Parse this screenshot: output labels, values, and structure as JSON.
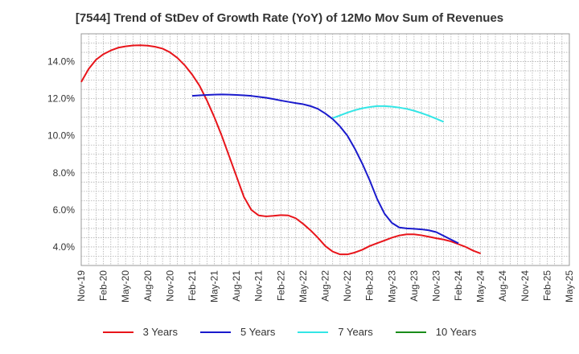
{
  "chart_data": {
    "type": "line",
    "title": "[7544]  Trend of StDev of Growth Rate (YoY) of 12Mo Mov Sum of Revenues",
    "xlabel": "",
    "ylabel": "",
    "y_range": [
      3.0,
      15.5
    ],
    "y_ticks": [
      4.0,
      6.0,
      8.0,
      10.0,
      12.0,
      14.0
    ],
    "y_tick_labels": [
      "4.0%",
      "6.0%",
      "8.0%",
      "10.0%",
      "12.0%",
      "14.0%"
    ],
    "x_tick_labels": [
      "Nov-19",
      "Feb-20",
      "May-20",
      "Aug-20",
      "Nov-20",
      "Feb-21",
      "May-21",
      "Aug-21",
      "Nov-21",
      "Feb-22",
      "May-22",
      "Aug-22",
      "Nov-22",
      "Feb-23",
      "May-23",
      "Aug-23",
      "Nov-23",
      "Feb-24",
      "May-24",
      "Aug-24",
      "Nov-24",
      "Feb-25",
      "May-25"
    ],
    "grid": true,
    "legend_position": "bottom",
    "series": [
      {
        "name": "3 Years",
        "color": "#e8141a",
        "values": [
          12.9,
          13.6,
          14.1,
          14.4,
          14.6,
          14.75,
          14.82,
          14.87,
          14.88,
          14.86,
          14.8,
          14.7,
          14.5,
          14.2,
          13.8,
          13.3,
          12.7,
          11.9,
          11.0,
          10.0,
          8.9,
          7.8,
          6.7,
          6.0,
          5.7,
          5.65,
          5.68,
          5.72,
          5.7,
          5.55,
          5.25,
          4.9,
          4.5,
          4.05,
          3.75,
          3.6,
          3.6,
          3.7,
          3.85,
          4.05,
          4.2,
          4.35,
          4.5,
          4.62,
          4.68,
          4.68,
          4.63,
          4.55,
          4.47,
          4.4,
          4.3,
          4.15,
          4.0,
          3.8,
          3.65
        ]
      },
      {
        "name": "5 Years",
        "color": "#1a1acc",
        "values": [
          null,
          null,
          null,
          null,
          null,
          null,
          null,
          null,
          null,
          null,
          null,
          null,
          null,
          null,
          null,
          12.15,
          12.18,
          12.2,
          12.22,
          12.23,
          12.22,
          12.2,
          12.18,
          12.15,
          12.1,
          12.05,
          11.98,
          11.9,
          11.83,
          11.76,
          11.7,
          11.6,
          11.45,
          11.2,
          10.9,
          10.5,
          10.0,
          9.3,
          8.5,
          7.6,
          6.6,
          5.8,
          5.3,
          5.05,
          5.0,
          4.98,
          4.95,
          4.9,
          4.8,
          4.6,
          4.4,
          4.2
        ]
      },
      {
        "name": "7 Years",
        "color": "#33e6e6",
        "values": [
          null,
          null,
          null,
          null,
          null,
          null,
          null,
          null,
          null,
          null,
          null,
          null,
          null,
          null,
          null,
          null,
          null,
          null,
          null,
          null,
          null,
          null,
          null,
          null,
          null,
          null,
          null,
          null,
          null,
          null,
          null,
          null,
          null,
          null,
          10.95,
          11.1,
          11.25,
          11.38,
          11.48,
          11.55,
          11.6,
          11.6,
          11.57,
          11.52,
          11.45,
          11.35,
          11.22,
          11.08,
          10.92,
          10.75
        ]
      },
      {
        "name": "10 Years",
        "color": "#1a8c1a",
        "values": []
      }
    ]
  }
}
